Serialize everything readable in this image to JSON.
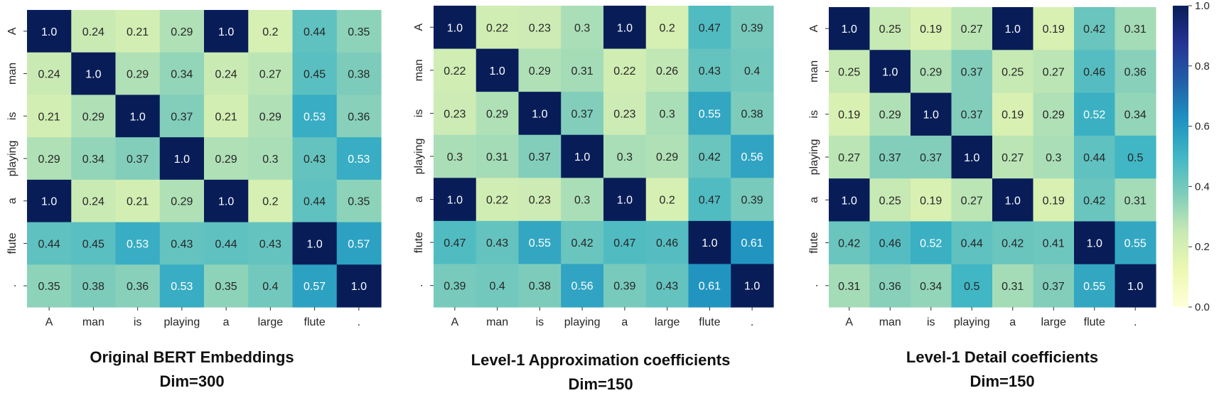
{
  "chart_data": [
    {
      "type": "heatmap",
      "title": "Original BERT Embeddings",
      "subtitle": "Dim=300",
      "row_labels": [
        "A",
        "man",
        "is",
        "playing",
        "a",
        "flute",
        "."
      ],
      "col_labels": [
        "A",
        "man",
        "is",
        "playing",
        "a",
        "large",
        "flute",
        "."
      ],
      "values": [
        [
          1.0,
          0.24,
          0.21,
          0.29,
          1.0,
          0.2,
          0.44,
          0.35
        ],
        [
          0.24,
          1.0,
          0.29,
          0.34,
          0.24,
          0.27,
          0.45,
          0.38
        ],
        [
          0.21,
          0.29,
          1.0,
          0.37,
          0.21,
          0.29,
          0.53,
          0.36
        ],
        [
          0.29,
          0.34,
          0.37,
          1.0,
          0.29,
          0.3,
          0.43,
          0.53
        ],
        [
          1.0,
          0.24,
          0.21,
          0.29,
          1.0,
          0.2,
          0.44,
          0.35
        ],
        [
          0.44,
          0.45,
          0.53,
          0.43,
          0.44,
          0.43,
          1.0,
          0.57
        ],
        [
          0.35,
          0.38,
          0.36,
          0.53,
          0.35,
          0.4,
          0.57,
          1.0
        ]
      ]
    },
    {
      "type": "heatmap",
      "title": "Level-1 Approximation coefficients",
      "subtitle": "Dim=150",
      "row_labels": [
        "A",
        "man",
        "is",
        "playing",
        "a",
        "flute",
        "."
      ],
      "col_labels": [
        "A",
        "man",
        "is",
        "playing",
        "a",
        "large",
        "flute",
        "."
      ],
      "values": [
        [
          1.0,
          0.22,
          0.23,
          0.3,
          1.0,
          0.2,
          0.47,
          0.39
        ],
        [
          0.22,
          1.0,
          0.29,
          0.31,
          0.22,
          0.26,
          0.43,
          0.4
        ],
        [
          0.23,
          0.29,
          1.0,
          0.37,
          0.23,
          0.3,
          0.55,
          0.38
        ],
        [
          0.3,
          0.31,
          0.37,
          1.0,
          0.3,
          0.29,
          0.42,
          0.56
        ],
        [
          1.0,
          0.22,
          0.23,
          0.3,
          1.0,
          0.2,
          0.47,
          0.39
        ],
        [
          0.47,
          0.43,
          0.55,
          0.42,
          0.47,
          0.46,
          1.0,
          0.61
        ],
        [
          0.39,
          0.4,
          0.38,
          0.56,
          0.39,
          0.43,
          0.61,
          1.0
        ]
      ]
    },
    {
      "type": "heatmap",
      "title": "Level-1 Detail coefficients",
      "subtitle": "Dim=150",
      "row_labels": [
        "A",
        "man",
        "is",
        "playing",
        "a",
        "flute",
        "."
      ],
      "col_labels": [
        "A",
        "man",
        "is",
        "playing",
        "a",
        "large",
        "flute",
        "."
      ],
      "values": [
        [
          1.0,
          0.25,
          0.19,
          0.27,
          1.0,
          0.19,
          0.42,
          0.31
        ],
        [
          0.25,
          1.0,
          0.29,
          0.37,
          0.25,
          0.27,
          0.46,
          0.36
        ],
        [
          0.19,
          0.29,
          1.0,
          0.37,
          0.19,
          0.29,
          0.52,
          0.34
        ],
        [
          0.27,
          0.37,
          0.37,
          1.0,
          0.27,
          0.3,
          0.44,
          0.5
        ],
        [
          1.0,
          0.25,
          0.19,
          0.27,
          1.0,
          0.19,
          0.42,
          0.31
        ],
        [
          0.42,
          0.46,
          0.52,
          0.44,
          0.42,
          0.41,
          1.0,
          0.55
        ],
        [
          0.31,
          0.36,
          0.34,
          0.5,
          0.31,
          0.37,
          0.55,
          1.0
        ]
      ],
      "colorbar": {
        "range": [
          0.0,
          1.0
        ],
        "ticks": [
          "0.0",
          "0.2",
          "0.4",
          "0.6",
          "0.8",
          "1.0"
        ],
        "colormap": "YlGnBu"
      }
    }
  ]
}
